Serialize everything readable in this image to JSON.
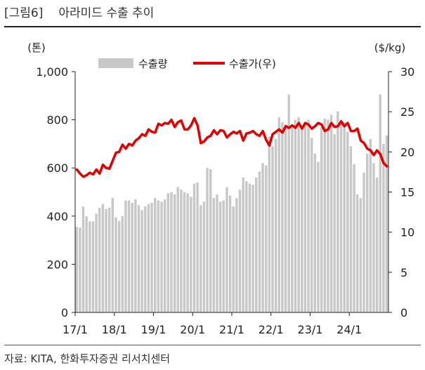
{
  "figure": {
    "label": "[그림6]",
    "title": "아라미드 수출 추이",
    "source": "자료: KITA, 한화투자증권 리서치센터"
  },
  "colors": {
    "bar": "#c8c8c8",
    "line": "#e00000",
    "axis": "#222222"
  },
  "chart_data": {
    "type": "bar+line",
    "x_tick_labels": [
      "17/1",
      "18/1",
      "19/1",
      "20/1",
      "21/1",
      "22/1",
      "23/1",
      "24/1"
    ],
    "left_axis": {
      "unit": "(톤)",
      "ylim": [
        0,
        1000
      ],
      "ticks": [
        "0",
        "200",
        "400",
        "600",
        "800",
        "1,000"
      ]
    },
    "right_axis": {
      "unit": "($/kg)",
      "ylim": [
        0,
        30
      ],
      "ticks": [
        "0",
        "5",
        "10",
        "15",
        "20",
        "25",
        "30"
      ]
    },
    "legend": [
      "수출량",
      "수출가(우)"
    ],
    "legend_position": "top-center",
    "series": [
      {
        "name": "수출량",
        "kind": "bar",
        "axis": "left",
        "values": [
          355,
          352,
          440,
          400,
          378,
          378,
          410,
          435,
          450,
          430,
          435,
          475,
          395,
          380,
          400,
          465,
          465,
          455,
          470,
          445,
          425,
          440,
          450,
          455,
          475,
          465,
          460,
          470,
          495,
          500,
          490,
          520,
          510,
          500,
          495,
          480,
          535,
          540,
          445,
          460,
          600,
          595,
          475,
          490,
          460,
          465,
          520,
          485,
          440,
          475,
          510,
          560,
          545,
          535,
          530,
          560,
          585,
          620,
          610,
          730,
          690,
          720,
          810,
          790,
          780,
          905,
          775,
          800,
          810,
          765,
          780,
          800,
          725,
          660,
          625,
          770,
          805,
          800,
          820,
          740,
          835,
          800,
          790,
          750,
          690,
          615,
          490,
          475,
          580,
          660,
          720,
          620,
          560,
          905,
          700,
          735
        ]
      },
      {
        "name": "수출가(우)",
        "kind": "line",
        "axis": "right",
        "values": [
          17.8,
          17.3,
          16.9,
          17.1,
          17.4,
          17.2,
          17.8,
          17.3,
          18.4,
          18.0,
          17.9,
          18.9,
          19.9,
          20.0,
          20.9,
          20.4,
          21.0,
          20.8,
          21.4,
          21.7,
          22.2,
          22.0,
          22.8,
          22.5,
          22.4,
          23.5,
          23.3,
          23.6,
          23.5,
          24.0,
          23.1,
          23.7,
          23.9,
          22.8,
          22.8,
          23.3,
          24.2,
          23.3,
          21.1,
          21.3,
          21.8,
          22.0,
          22.7,
          22.2,
          22.7,
          22.6,
          21.8,
          22.2,
          22.5,
          22.3,
          22.6,
          21.4,
          22.3,
          22.4,
          22.6,
          22.2,
          22.0,
          22.6,
          21.5,
          20.8,
          22.2,
          22.5,
          22.8,
          22.4,
          23.2,
          23.0,
          23.3,
          23.0,
          23.6,
          22.9,
          23.6,
          23.4,
          22.9,
          23.2,
          23.6,
          23.4,
          22.6,
          22.8,
          23.6,
          23.1,
          23.2,
          23.8,
          23.2,
          23.6,
          22.6,
          22.6,
          22.9,
          21.4,
          21.1,
          20.4,
          20.2,
          19.6,
          20.2,
          19.7,
          18.6,
          18.2
        ]
      }
    ]
  }
}
